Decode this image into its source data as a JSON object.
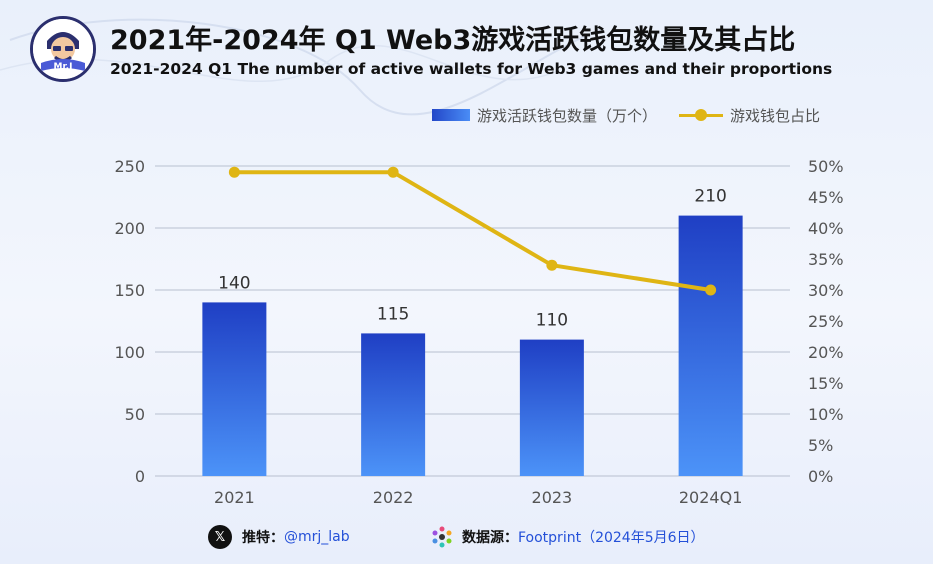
{
  "header": {
    "title": "2021年-2024年 Q1 Web3游戏活跃钱包数量及其占比",
    "subtitle": "2021-2024 Q1 The number of active wallets for Web3 games and their proportions",
    "logo_text": "Mr.J"
  },
  "legend": {
    "bar_label": "游戏活跃钱包数量（万个）",
    "line_label": "游戏钱包占比"
  },
  "footer": {
    "twitter_label": "推特：",
    "twitter_value": "@mrj_lab",
    "source_label": "数据源：",
    "source_value": "Footprint（2024年5月6日）"
  },
  "colors": {
    "bar_top": "#1f3fc4",
    "bar_bottom": "#4c93f8",
    "line": "#dfb514",
    "grid": "#b8c0cf",
    "axis_text": "#555555"
  },
  "chart_data": {
    "type": "bar+line",
    "categories": [
      "2021",
      "2022",
      "2023",
      "2024Q1"
    ],
    "series": [
      {
        "name": "游戏活跃钱包数量（万个）",
        "type": "bar",
        "axis": "left",
        "values": [
          140,
          115,
          110,
          210
        ],
        "data_labels": [
          "140",
          "115",
          "110",
          "210"
        ]
      },
      {
        "name": "游戏钱包占比",
        "type": "line",
        "axis": "right",
        "values": [
          49,
          49,
          34,
          30
        ]
      }
    ],
    "y_left": {
      "ylim": [
        0,
        250
      ],
      "ticks": [
        "0",
        "50",
        "100",
        "150",
        "200",
        "250"
      ]
    },
    "y_right": {
      "ylim": [
        0,
        50
      ],
      "ticks": [
        "0%",
        "5%",
        "10%",
        "15%",
        "20%",
        "25%",
        "30%",
        "35%",
        "40%",
        "45%",
        "50%"
      ]
    },
    "grid": true,
    "legend_position": "top-right"
  }
}
